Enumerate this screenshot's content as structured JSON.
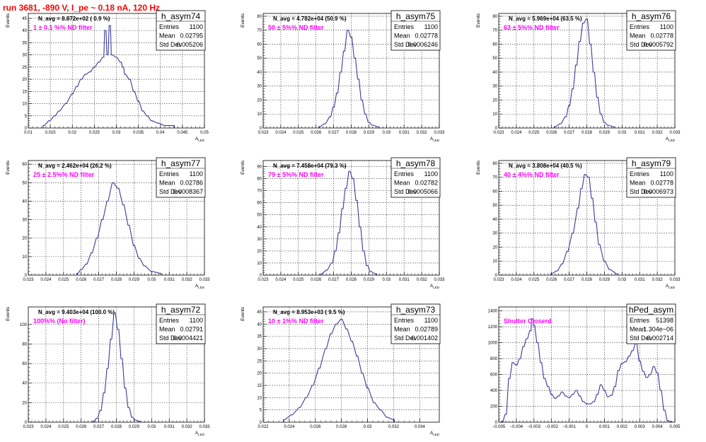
{
  "run_title": "run 3681,  -890 V, I_pe ~ 0.18 nA, 120 Hz",
  "style": {
    "hist_color": "#3b3b9c",
    "frame_color": "#000000",
    "grid_color": "#000000",
    "run_title_color": "#ff0000",
    "note_color": "#ff00ff"
  },
  "chart_data": [
    {
      "type": "bar",
      "name": "h_asym74",
      "navg": "N_avg = 8.872e+02 ( 0.9 %)",
      "note": "1 ± 0.1 %% ND filter",
      "stats": {
        "entries": "1100",
        "mean": "0.02795",
        "stddev": "0.005206"
      },
      "stats_labels": [
        "Entries",
        "Mean",
        "Std Dev"
      ],
      "xlabel": "A_LED",
      "ylabel": "Events",
      "xlim": [
        0.01,
        0.05
      ],
      "ylim": [
        0,
        47
      ],
      "xticks": [
        0.01,
        0.015,
        0.02,
        0.025,
        0.03,
        0.035,
        0.04,
        0.045,
        0.05
      ],
      "xtick_labels": [
        "0.01",
        "0.015",
        "0.02",
        "0.025",
        "0.03",
        "0.035",
        "0.04",
        "0.045",
        "0.05"
      ],
      "yticks": [
        0,
        5,
        10,
        15,
        20,
        25,
        30,
        35,
        40,
        45
      ],
      "points": [
        [
          0.0135,
          1
        ],
        [
          0.0148,
          3
        ],
        [
          0.016,
          5
        ],
        [
          0.017,
          7
        ],
        [
          0.0185,
          10
        ],
        [
          0.02,
          14
        ],
        [
          0.021,
          17
        ],
        [
          0.022,
          20
        ],
        [
          0.023,
          22
        ],
        [
          0.024,
          23
        ],
        [
          0.025,
          25
        ],
        [
          0.026,
          27
        ],
        [
          0.027,
          29
        ],
        [
          0.0275,
          40
        ],
        [
          0.028,
          30
        ],
        [
          0.0285,
          42
        ],
        [
          0.029,
          30
        ],
        [
          0.03,
          29
        ],
        [
          0.031,
          27
        ],
        [
          0.0315,
          25
        ],
        [
          0.032,
          22
        ],
        [
          0.033,
          20
        ],
        [
          0.034,
          15
        ],
        [
          0.035,
          11
        ],
        [
          0.036,
          7
        ],
        [
          0.037,
          5
        ],
        [
          0.038,
          3
        ],
        [
          0.0395,
          2
        ],
        [
          0.041,
          1
        ],
        [
          0.043,
          1
        ]
      ]
    },
    {
      "type": "bar",
      "name": "h_asym75",
      "navg": "N_avg = 4.782e+04 (50.9 %)",
      "note": "50 ± 5%% ND filter",
      "stats": {
        "entries": "1100",
        "mean": "0.02778",
        "stddev": "0.0006246"
      },
      "stats_labels": [
        "Entries",
        "Mean",
        "Std Dev"
      ],
      "xlabel": "A_LED",
      "ylabel": "Events",
      "xlim": [
        0.023,
        0.033
      ],
      "ylim": [
        0,
        82
      ],
      "xticks": [
        0.023,
        0.024,
        0.025,
        0.026,
        0.027,
        0.028,
        0.029,
        0.03,
        0.031,
        0.032,
        0.033
      ],
      "xtick_labels": [
        "0.023",
        "0.024",
        "0.025",
        "0.026",
        "0.027",
        "0.028",
        "0.029",
        "0.03",
        "0.031",
        "0.032",
        "0.033"
      ],
      "yticks": [
        0,
        10,
        20,
        30,
        40,
        50,
        60,
        70,
        80
      ],
      "points": [
        [
          0.0262,
          1
        ],
        [
          0.0265,
          3
        ],
        [
          0.0268,
          8
        ],
        [
          0.027,
          15
        ],
        [
          0.0272,
          25
        ],
        [
          0.0274,
          40
        ],
        [
          0.0276,
          55
        ],
        [
          0.0278,
          70
        ],
        [
          0.028,
          65
        ],
        [
          0.0282,
          50
        ],
        [
          0.0284,
          35
        ],
        [
          0.0286,
          20
        ],
        [
          0.0288,
          10
        ],
        [
          0.029,
          4
        ],
        [
          0.0292,
          2
        ],
        [
          0.0295,
          1
        ]
      ]
    },
    {
      "type": "bar",
      "name": "h_asym76",
      "navg": "N_avg = 5.969e+04 (63.5 %)",
      "note": "63 ± 5%% ND filter",
      "stats": {
        "entries": "1100",
        "mean": "0.02778",
        "stddev": "0.0005792"
      },
      "stats_labels": [
        "Entries",
        "Mean",
        "Std Dev"
      ],
      "xlabel": "A_LED",
      "ylabel": "Events",
      "xlim": [
        0.023,
        0.033
      ],
      "ylim": [
        0,
        82
      ],
      "xticks": [
        0.023,
        0.024,
        0.025,
        0.026,
        0.027,
        0.028,
        0.029,
        0.03,
        0.031,
        0.032,
        0.033
      ],
      "xtick_labels": [
        "0.023",
        "0.024",
        "0.025",
        "0.026",
        "0.027",
        "0.028",
        "0.029",
        "0.03",
        "0.031",
        "0.032",
        "0.033"
      ],
      "yticks": [
        0,
        10,
        20,
        30,
        40,
        50,
        60,
        70,
        80
      ],
      "points": [
        [
          0.0262,
          1
        ],
        [
          0.0265,
          3
        ],
        [
          0.0268,
          8
        ],
        [
          0.027,
          16
        ],
        [
          0.0272,
          28
        ],
        [
          0.0274,
          45
        ],
        [
          0.0276,
          62
        ],
        [
          0.0278,
          75
        ],
        [
          0.028,
          78
        ],
        [
          0.0282,
          60
        ],
        [
          0.0284,
          40
        ],
        [
          0.0286,
          22
        ],
        [
          0.0288,
          10
        ],
        [
          0.029,
          4
        ],
        [
          0.0292,
          2
        ],
        [
          0.0295,
          1
        ]
      ]
    },
    {
      "type": "bar",
      "name": "h_asym77",
      "navg": "N_avg = 2.462e+04 (26.2 %)",
      "note": "25 ± 2.5%% ND filter",
      "stats": {
        "entries": "1100",
        "mean": "0.02786",
        "stddev": "0.0008367"
      },
      "stats_labels": [
        "Entries",
        "Mean",
        "Std Dev"
      ],
      "xlabel": "A_LED",
      "ylabel": "Events",
      "xlim": [
        0.023,
        0.033
      ],
      "ylim": [
        0,
        62
      ],
      "xticks": [
        0.023,
        0.024,
        0.025,
        0.026,
        0.027,
        0.028,
        0.029,
        0.03,
        0.031,
        0.032,
        0.033
      ],
      "xtick_labels": [
        "0.023",
        "0.024",
        "0.025",
        "0.026",
        "0.027",
        "0.028",
        "0.029",
        "0.03",
        "0.031",
        "0.032",
        "0.033"
      ],
      "yticks": [
        0,
        10,
        20,
        30,
        40,
        50,
        60
      ],
      "points": [
        [
          0.0258,
          1
        ],
        [
          0.026,
          3
        ],
        [
          0.0263,
          6
        ],
        [
          0.0266,
          12
        ],
        [
          0.0269,
          20
        ],
        [
          0.0272,
          30
        ],
        [
          0.0275,
          40
        ],
        [
          0.0278,
          50
        ],
        [
          0.0281,
          47
        ],
        [
          0.0284,
          38
        ],
        [
          0.0287,
          27
        ],
        [
          0.029,
          16
        ],
        [
          0.0293,
          9
        ],
        [
          0.0296,
          5
        ],
        [
          0.03,
          2
        ],
        [
          0.0305,
          1
        ]
      ]
    },
    {
      "type": "bar",
      "name": "h_asym78",
      "navg": "N_avg = 7.458e+04 (79.3 %)",
      "note": "79 ± 5%% ND filter",
      "stats": {
        "entries": "1100",
        "mean": "0.02782",
        "stddev": "0.0005066"
      },
      "stats_labels": [
        "Entries",
        "Mean",
        "Std Dev"
      ],
      "xlabel": "A_LED",
      "ylabel": "Events",
      "xlim": [
        0.023,
        0.033
      ],
      "ylim": [
        0,
        95
      ],
      "xticks": [
        0.023,
        0.024,
        0.025,
        0.026,
        0.027,
        0.028,
        0.029,
        0.03,
        0.031,
        0.032,
        0.033
      ],
      "xtick_labels": [
        "0.023",
        "0.024",
        "0.025",
        "0.026",
        "0.027",
        "0.028",
        "0.029",
        "0.03",
        "0.031",
        "0.032",
        "0.033"
      ],
      "yticks": [
        0,
        10,
        20,
        30,
        40,
        50,
        60,
        70,
        80,
        90
      ],
      "points": [
        [
          0.0263,
          1
        ],
        [
          0.0266,
          4
        ],
        [
          0.0269,
          10
        ],
        [
          0.0271,
          20
        ],
        [
          0.0273,
          35
        ],
        [
          0.0275,
          55
        ],
        [
          0.0277,
          72
        ],
        [
          0.0279,
          86
        ],
        [
          0.0281,
          80
        ],
        [
          0.0283,
          62
        ],
        [
          0.0285,
          40
        ],
        [
          0.0287,
          20
        ],
        [
          0.0289,
          8
        ],
        [
          0.0291,
          3
        ],
        [
          0.0294,
          1
        ]
      ]
    },
    {
      "type": "bar",
      "name": "h_asym79",
      "navg": "N_avg = 3.808e+04 (40.5 %)",
      "note": "40 ± 4%% ND filter",
      "stats": {
        "entries": "1100",
        "mean": "0.02778",
        "stddev": "0.0006973"
      },
      "stats_labels": [
        "Entries",
        "Mean",
        "Std Dev"
      ],
      "xlabel": "A_LED",
      "ylabel": "Events",
      "xlim": [
        0.023,
        0.033
      ],
      "ylim": [
        0,
        82
      ],
      "xticks": [
        0.023,
        0.024,
        0.025,
        0.026,
        0.027,
        0.028,
        0.029,
        0.03,
        0.031,
        0.032,
        0.033
      ],
      "xtick_labels": [
        "0.023",
        "0.024",
        "0.025",
        "0.026",
        "0.027",
        "0.028",
        "0.029",
        "0.03",
        "0.031",
        "0.032",
        "0.033"
      ],
      "yticks": [
        0,
        10,
        20,
        30,
        40,
        50,
        60,
        70,
        80
      ],
      "points": [
        [
          0.026,
          1
        ],
        [
          0.0263,
          3
        ],
        [
          0.0266,
          8
        ],
        [
          0.0269,
          17
        ],
        [
          0.0272,
          30
        ],
        [
          0.0275,
          48
        ],
        [
          0.0277,
          62
        ],
        [
          0.0279,
          72
        ],
        [
          0.0281,
          70
        ],
        [
          0.0283,
          55
        ],
        [
          0.0285,
          38
        ],
        [
          0.0287,
          22
        ],
        [
          0.029,
          10
        ],
        [
          0.0293,
          4
        ],
        [
          0.0297,
          1
        ]
      ]
    },
    {
      "type": "bar",
      "name": "h_asym72",
      "navg": "N_avg = 9.403e+04 (100.0 %)",
      "note": "100%% (No filter)",
      "stats": {
        "entries": "1100",
        "mean": "0.02791",
        "stddev": "0.0004421"
      },
      "stats_labels": [
        "Entries",
        "Mean",
        "Std Dev"
      ],
      "xlabel": "A_LED",
      "ylabel": "Events",
      "xlim": [
        0.023,
        0.033
      ],
      "ylim": [
        0,
        118
      ],
      "xticks": [
        0.023,
        0.024,
        0.025,
        0.026,
        0.027,
        0.028,
        0.029,
        0.03,
        0.031,
        0.032,
        0.033
      ],
      "xtick_labels": [
        "0.023",
        "0.024",
        "0.025",
        "0.026",
        "0.027",
        "0.028",
        "0.029",
        "0.03",
        "0.031",
        "0.032",
        "0.033"
      ],
      "yticks": [
        0,
        20,
        40,
        60,
        80,
        100
      ],
      "points": [
        [
          0.0267,
          1
        ],
        [
          0.0269,
          4
        ],
        [
          0.0271,
          12
        ],
        [
          0.0273,
          30
        ],
        [
          0.0275,
          55
        ],
        [
          0.0277,
          85
        ],
        [
          0.0279,
          112
        ],
        [
          0.0281,
          95
        ],
        [
          0.0283,
          65
        ],
        [
          0.0285,
          35
        ],
        [
          0.0287,
          15
        ],
        [
          0.0289,
          5
        ],
        [
          0.0291,
          2
        ],
        [
          0.0293,
          1
        ]
      ]
    },
    {
      "type": "bar",
      "name": "h_asym73",
      "navg": "N_avg = 8.953e+03 ( 9.5 %)",
      "note": "10 ± 1%% ND filter",
      "stats": {
        "entries": "1100",
        "mean": "0.02789",
        "stddev": "0.001402"
      },
      "stats_labels": [
        "Entries",
        "Mean",
        "Std Dev"
      ],
      "xlabel": "A_LED",
      "ylabel": "Events",
      "xlim": [
        0.022,
        0.0355
      ],
      "ylim": [
        0,
        47
      ],
      "xticks": [
        0.022,
        0.024,
        0.026,
        0.028,
        0.03,
        0.032,
        0.034
      ],
      "xtick_labels": [
        "0.022",
        "0.024",
        "0.026",
        "0.028",
        "0.03",
        "0.032",
        "0.034"
      ],
      "yticks": [
        0,
        5,
        10,
        15,
        20,
        25,
        30,
        35,
        40,
        45
      ],
      "points": [
        [
          0.0236,
          1
        ],
        [
          0.0242,
          3
        ],
        [
          0.0248,
          6
        ],
        [
          0.0253,
          10
        ],
        [
          0.0258,
          15
        ],
        [
          0.0263,
          22
        ],
        [
          0.0268,
          30
        ],
        [
          0.0272,
          36
        ],
        [
          0.0276,
          40
        ],
        [
          0.028,
          42
        ],
        [
          0.0284,
          38
        ],
        [
          0.0288,
          33
        ],
        [
          0.0292,
          27
        ],
        [
          0.0296,
          20
        ],
        [
          0.03,
          14
        ],
        [
          0.0305,
          8
        ],
        [
          0.031,
          5
        ],
        [
          0.0315,
          2
        ],
        [
          0.032,
          1
        ]
      ]
    },
    {
      "type": "bar",
      "name": "hPed_asym",
      "navg": "",
      "note": "Shutter Closerd",
      "stats": {
        "entries": "51398",
        "mean": "1.304e−06",
        "stddev": "0.002714"
      },
      "stats_labels": [
        "Entries",
        "Mean",
        "Std Dev"
      ],
      "xlabel": "",
      "ylabel": "",
      "xlim": [
        -0.005,
        0.005
      ],
      "ylim": [
        0,
        1450
      ],
      "xticks": [
        -0.005,
        -0.004,
        -0.003,
        -0.002,
        -0.001,
        0,
        0.001,
        0.002,
        0.003,
        0.004,
        0.005
      ],
      "xtick_labels": [
        "−0.005",
        "−0.004",
        "−0.003",
        "−0.002",
        "−0.001",
        "0",
        "0.001",
        "0.002",
        "0.003",
        "0.004",
        "0.005"
      ],
      "yticks": [
        0,
        200,
        400,
        600,
        800,
        1000,
        1200,
        1400
      ],
      "points": [
        [
          -0.0048,
          10
        ],
        [
          -0.0046,
          100
        ],
        [
          -0.0044,
          550
        ],
        [
          -0.0042,
          750
        ],
        [
          -0.004,
          720
        ],
        [
          -0.0038,
          800
        ],
        [
          -0.0036,
          950
        ],
        [
          -0.0034,
          1050
        ],
        [
          -0.0032,
          1150
        ],
        [
          -0.0031,
          1300
        ],
        [
          -0.003,
          1220
        ],
        [
          -0.0028,
          1000
        ],
        [
          -0.0026,
          750
        ],
        [
          -0.0024,
          550
        ],
        [
          -0.0022,
          450
        ],
        [
          -0.002,
          350
        ],
        [
          -0.0018,
          300
        ],
        [
          -0.0016,
          330
        ],
        [
          -0.0014,
          380
        ],
        [
          -0.0012,
          330
        ],
        [
          -0.001,
          310
        ],
        [
          -0.0008,
          350
        ],
        [
          -0.0006,
          400
        ],
        [
          -0.0004,
          330
        ],
        [
          -0.0002,
          260
        ],
        [
          0,
          230
        ],
        [
          0.0002,
          230
        ],
        [
          0.0004,
          260
        ],
        [
          0.0006,
          350
        ],
        [
          0.0008,
          470
        ],
        [
          0.001,
          400
        ],
        [
          0.0012,
          320
        ],
        [
          0.0014,
          340
        ],
        [
          0.0016,
          450
        ],
        [
          0.0018,
          650
        ],
        [
          0.002,
          740
        ],
        [
          0.0022,
          760
        ],
        [
          0.0024,
          830
        ],
        [
          0.0026,
          900
        ],
        [
          0.0028,
          1000
        ],
        [
          0.003,
          770
        ],
        [
          0.0032,
          640
        ],
        [
          0.0034,
          560
        ],
        [
          0.0036,
          600
        ],
        [
          0.0038,
          700
        ],
        [
          0.004,
          620
        ],
        [
          0.0042,
          400
        ],
        [
          0.0044,
          150
        ],
        [
          0.0046,
          20
        ],
        [
          0.0048,
          5
        ]
      ]
    }
  ]
}
